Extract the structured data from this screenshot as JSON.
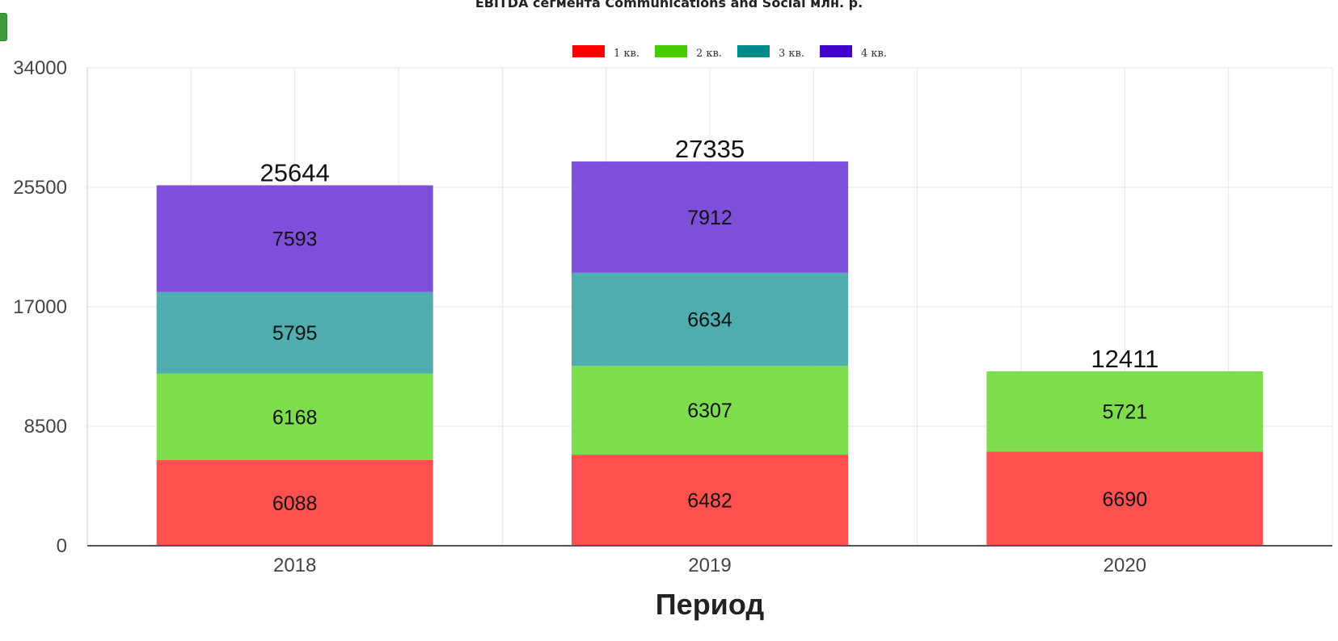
{
  "chart_data": {
    "type": "bar",
    "stacked": true,
    "title": "EBITDA сегмента Communications and Social млн. р.",
    "xlabel": "Период",
    "ylabel": "",
    "categories": [
      "2018",
      "2019",
      "2020"
    ],
    "ylim": [
      0,
      34000
    ],
    "yticks": [
      "0",
      "8500",
      "17000",
      "25500",
      "34000"
    ],
    "grid": true,
    "legend_position": "top-center",
    "series": [
      {
        "name": "1 кв.",
        "legend_color": "#ff0000",
        "color": "#ff5050",
        "values": [
          6088,
          6482,
          6690
        ],
        "labels": [
          "6088",
          "6482",
          "6690"
        ]
      },
      {
        "name": "2 кв.",
        "legend_color": "#44cc00",
        "color": "#7ddd4c",
        "values": [
          6168,
          6307,
          5721
        ],
        "labels": [
          "6168",
          "6307",
          "5721"
        ]
      },
      {
        "name": "3 кв.",
        "legend_color": "#008b8b",
        "color": "#4fadad",
        "values": [
          5795,
          6634,
          null
        ],
        "labels": [
          "5795",
          "6634",
          ""
        ]
      },
      {
        "name": "4 кв.",
        "legend_color": "#4400cc",
        "color": "#7d4fdb",
        "values": [
          7593,
          7912,
          null
        ],
        "labels": [
          "7593",
          "7912",
          ""
        ]
      }
    ],
    "totals": [
      "25644",
      "27335",
      "12411"
    ]
  }
}
